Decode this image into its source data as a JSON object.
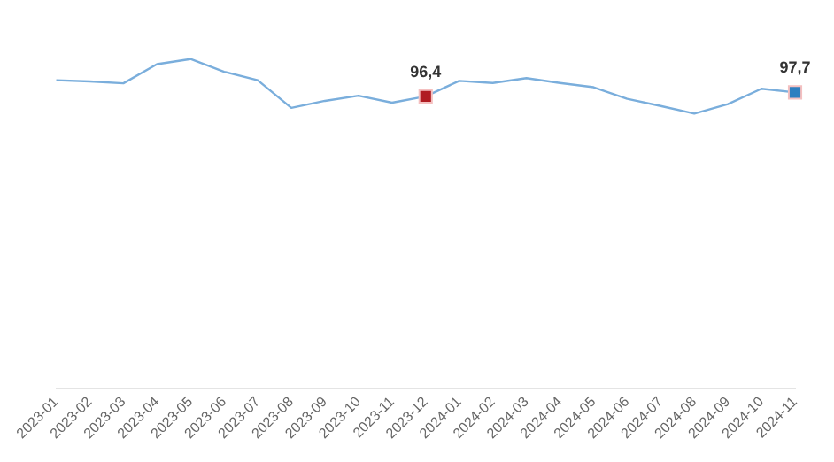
{
  "chart_data": {
    "type": "line",
    "categories": [
      "2023-01",
      "2023-02",
      "2023-03",
      "2023-04",
      "2023-05",
      "2023-06",
      "2023-07",
      "2023-08",
      "2023-09",
      "2023-10",
      "2023-11",
      "2023-12",
      "2024-01",
      "2024-02",
      "2024-03",
      "2024-04",
      "2024-05",
      "2024-06",
      "2024-07",
      "2024-08",
      "2024-09",
      "2024-10",
      "2024-11"
    ],
    "series": [
      {
        "color": "#7aaedc",
        "values": [
          101.7,
          101.3,
          100.7,
          107.0,
          108.7,
          104.5,
          101.7,
          92.6,
          94.9,
          96.6,
          94.3,
          96.4,
          101.5,
          100.8,
          102.4,
          100.8,
          99.4,
          95.6,
          93.2,
          90.7,
          93.8,
          98.9,
          97.7
        ],
        "colors": [
          null,
          null,
          null,
          null,
          null,
          null,
          null,
          null,
          null,
          null,
          null,
          "#b01c22",
          null,
          null,
          null,
          null,
          null,
          null,
          null,
          null,
          null,
          null,
          "#2e7fc0"
        ],
        "value_labels": [
          null,
          null,
          null,
          null,
          null,
          null,
          null,
          null,
          null,
          null,
          null,
          "96,4",
          null,
          null,
          null,
          null,
          null,
          null,
          null,
          null,
          null,
          null,
          "97,7"
        ]
      }
    ],
    "tick_labels": "x",
    "grid": false,
    "legend": false
  }
}
